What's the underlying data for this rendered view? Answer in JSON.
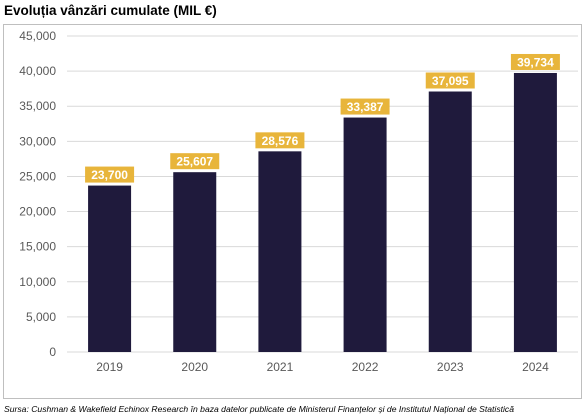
{
  "title": "Evoluția vânzări cumulate (MIL €)",
  "source": "Sursa: Cushman & Wakefield Echinox Research în baza datelor publicate de Ministerul Finanțelor și de Institutul Național de Statistică",
  "colors": {
    "bar": "#1f1a3c",
    "label_bg": "#e8b53b",
    "label_text": "#ffffff",
    "grid": "#d9d9d9",
    "tick_text": "#595959",
    "frame": "#bfbfbf"
  },
  "chart_data": {
    "type": "bar",
    "title": "Evoluția vânzări cumulate (MIL €)",
    "xlabel": "",
    "ylabel": "",
    "categories": [
      "2019",
      "2020",
      "2021",
      "2022",
      "2023",
      "2024"
    ],
    "values": [
      23700,
      25607,
      28576,
      33387,
      37095,
      39734
    ],
    "value_labels": [
      "23,700",
      "25,607",
      "28,576",
      "33,387",
      "37,095",
      "39,734"
    ],
    "ylim": [
      0,
      45000
    ],
    "yticks": [
      0,
      5000,
      10000,
      15000,
      20000,
      25000,
      30000,
      35000,
      40000,
      45000
    ],
    "ytick_labels": [
      "0",
      "5,000",
      "10,000",
      "15,000",
      "20,000",
      "25,000",
      "30,000",
      "35,000",
      "40,000",
      "45,000"
    ],
    "grid": true,
    "legend": "none"
  }
}
